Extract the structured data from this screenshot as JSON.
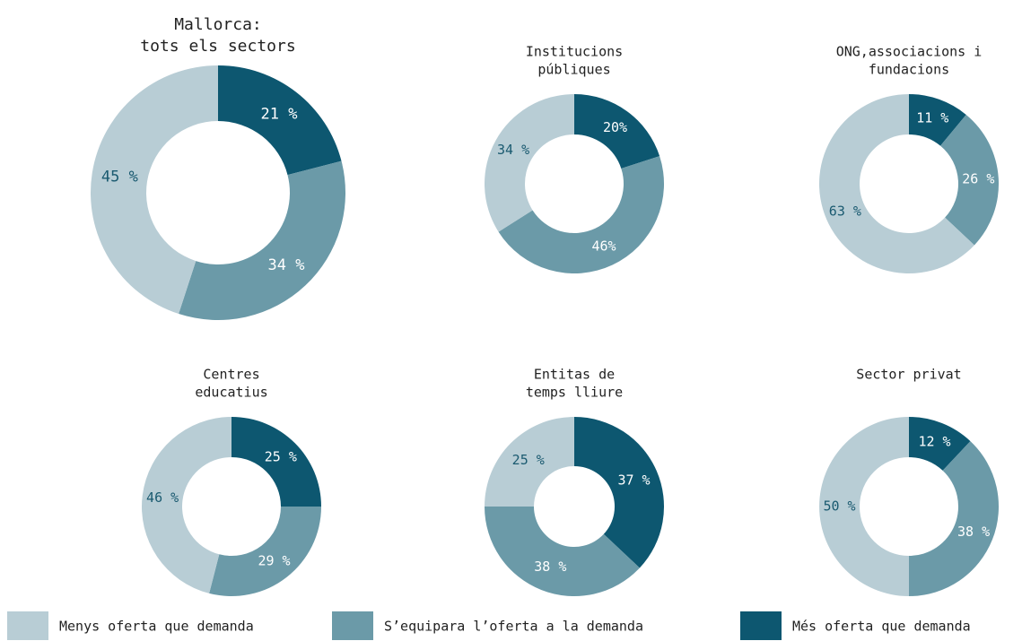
{
  "legend": {
    "labels": [
      "Menys oferta que demanda",
      "S’equipara l’oferta a la demanda",
      "Més oferta que demanda"
    ],
    "colors": [
      "#b8cdd5",
      "#6b9aa8",
      "#0d5770"
    ]
  },
  "chart_data": [
    {
      "type": "donut",
      "title": [
        "Mallorca:",
        "tots els sectors"
      ],
      "values": [
        45,
        34,
        21
      ],
      "value_labels": [
        "45 %",
        "34 %",
        "21 %"
      ]
    },
    {
      "type": "donut",
      "title": [
        "Institucions",
        "públiques"
      ],
      "values": [
        34,
        46,
        20
      ],
      "value_labels": [
        "34 %",
        "46%",
        "20%"
      ]
    },
    {
      "type": "donut",
      "title": [
        "ONG,associacions i",
        "fundacions"
      ],
      "values": [
        63,
        26,
        11
      ],
      "value_labels": [
        "63 %",
        "26 %",
        "11 %"
      ]
    },
    {
      "type": "donut",
      "title": [
        "Centres",
        "educatius"
      ],
      "values": [
        46,
        29,
        25
      ],
      "value_labels": [
        "46 %",
        "29 %",
        "25 %"
      ]
    },
    {
      "type": "donut",
      "title": [
        "Entitas de",
        "temps lliure"
      ],
      "values": [
        25,
        38,
        37
      ],
      "value_labels": [
        "25 %",
        "38 %",
        "37 %"
      ]
    },
    {
      "type": "donut",
      "title": [
        "Sector privat"
      ],
      "values": [
        50,
        38,
        12
      ],
      "value_labels": [
        "50 %",
        "38 %",
        "12 %"
      ]
    }
  ]
}
